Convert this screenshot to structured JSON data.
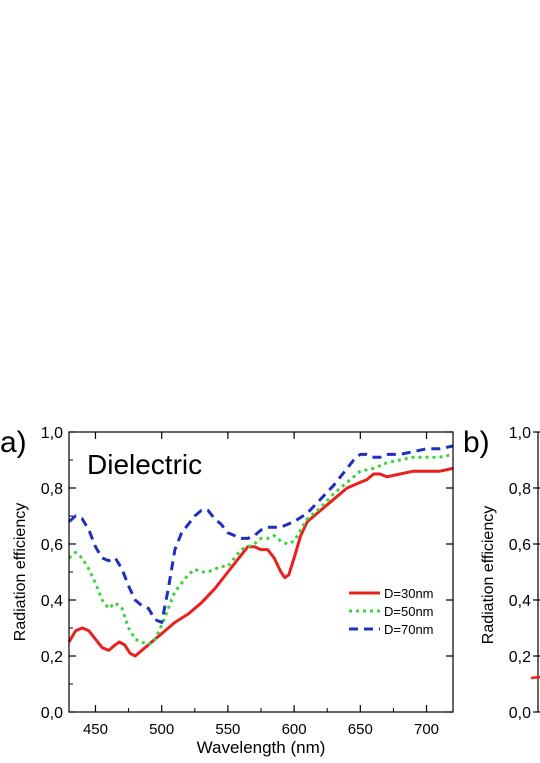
{
  "chart_data": [
    {
      "type": "line",
      "panel_label": "a)",
      "title": "Dielectric",
      "xlabel": "Wavelength (nm)",
      "ylabel": "Radiation efficiency",
      "xlim": [
        430,
        720
      ],
      "ylim": [
        0.0,
        1.0
      ],
      "x_ticks": [
        450,
        500,
        550,
        600,
        650,
        700
      ],
      "x_tick_labels": [
        "450",
        "500",
        "550",
        "600",
        "650",
        "700"
      ],
      "y_ticks": [
        0.0,
        0.2,
        0.4,
        0.6,
        0.8,
        1.0
      ],
      "y_tick_labels": [
        "0,0",
        "0,2",
        "0,4",
        "0,6",
        "0,8",
        "1,0"
      ],
      "grid": false,
      "legend_position": "center-right",
      "series": [
        {
          "name": "D=30nm",
          "color": "#e8201e",
          "dash": "solid",
          "points": [
            [
              430,
              0.25
            ],
            [
              435,
              0.29
            ],
            [
              440,
              0.3
            ],
            [
              445,
              0.29
            ],
            [
              450,
              0.26
            ],
            [
              455,
              0.23
            ],
            [
              460,
              0.22
            ],
            [
              465,
              0.24
            ],
            [
              468,
              0.25
            ],
            [
              472,
              0.24
            ],
            [
              476,
              0.21
            ],
            [
              480,
              0.2
            ],
            [
              485,
              0.22
            ],
            [
              490,
              0.24
            ],
            [
              495,
              0.26
            ],
            [
              500,
              0.28
            ],
            [
              510,
              0.32
            ],
            [
              520,
              0.35
            ],
            [
              530,
              0.39
            ],
            [
              540,
              0.44
            ],
            [
              550,
              0.5
            ],
            [
              560,
              0.56
            ],
            [
              565,
              0.59
            ],
            [
              570,
              0.59
            ],
            [
              575,
              0.58
            ],
            [
              580,
              0.58
            ],
            [
              585,
              0.55
            ],
            [
              590,
              0.5
            ],
            [
              593,
              0.48
            ],
            [
              596,
              0.49
            ],
            [
              600,
              0.55
            ],
            [
              605,
              0.63
            ],
            [
              610,
              0.68
            ],
            [
              620,
              0.72
            ],
            [
              630,
              0.76
            ],
            [
              640,
              0.8
            ],
            [
              650,
              0.82
            ],
            [
              655,
              0.83
            ],
            [
              660,
              0.85
            ],
            [
              665,
              0.85
            ],
            [
              670,
              0.84
            ],
            [
              680,
              0.85
            ],
            [
              690,
              0.86
            ],
            [
              700,
              0.86
            ],
            [
              710,
              0.86
            ],
            [
              720,
              0.87
            ]
          ]
        },
        {
          "name": "D=50nm",
          "color": "#39d43a",
          "dash": "dot",
          "points": [
            [
              430,
              0.55
            ],
            [
              435,
              0.57
            ],
            [
              440,
              0.55
            ],
            [
              445,
              0.51
            ],
            [
              450,
              0.46
            ],
            [
              455,
              0.4
            ],
            [
              460,
              0.37
            ],
            [
              465,
              0.39
            ],
            [
              470,
              0.37
            ],
            [
              475,
              0.3
            ],
            [
              480,
              0.26
            ],
            [
              485,
              0.25
            ],
            [
              490,
              0.24
            ],
            [
              495,
              0.26
            ],
            [
              500,
              0.31
            ],
            [
              505,
              0.37
            ],
            [
              510,
              0.43
            ],
            [
              515,
              0.46
            ],
            [
              520,
              0.49
            ],
            [
              525,
              0.51
            ],
            [
              530,
              0.5
            ],
            [
              535,
              0.5
            ],
            [
              540,
              0.51
            ],
            [
              545,
              0.52
            ],
            [
              550,
              0.52
            ],
            [
              555,
              0.55
            ],
            [
              560,
              0.58
            ],
            [
              570,
              0.6
            ],
            [
              575,
              0.62
            ],
            [
              580,
              0.62
            ],
            [
              585,
              0.63
            ],
            [
              590,
              0.61
            ],
            [
              595,
              0.6
            ],
            [
              600,
              0.61
            ],
            [
              605,
              0.65
            ],
            [
              610,
              0.69
            ],
            [
              620,
              0.73
            ],
            [
              630,
              0.78
            ],
            [
              640,
              0.82
            ],
            [
              650,
              0.86
            ],
            [
              660,
              0.87
            ],
            [
              670,
              0.89
            ],
            [
              680,
              0.9
            ],
            [
              690,
              0.91
            ],
            [
              700,
              0.91
            ],
            [
              710,
              0.91
            ],
            [
              720,
              0.92
            ]
          ]
        },
        {
          "name": "D=70nm",
          "color": "#1f2fc0",
          "dash": "dash",
          "points": [
            [
              430,
              0.68
            ],
            [
              435,
              0.7
            ],
            [
              440,
              0.69
            ],
            [
              445,
              0.65
            ],
            [
              450,
              0.59
            ],
            [
              455,
              0.55
            ],
            [
              460,
              0.54
            ],
            [
              465,
              0.55
            ],
            [
              470,
              0.51
            ],
            [
              475,
              0.45
            ],
            [
              480,
              0.4
            ],
            [
              485,
              0.38
            ],
            [
              490,
              0.37
            ],
            [
              495,
              0.33
            ],
            [
              500,
              0.32
            ],
            [
              505,
              0.44
            ],
            [
              510,
              0.58
            ],
            [
              515,
              0.64
            ],
            [
              520,
              0.67
            ],
            [
              525,
              0.7
            ],
            [
              530,
              0.72
            ],
            [
              535,
              0.72
            ],
            [
              540,
              0.69
            ],
            [
              545,
              0.67
            ],
            [
              550,
              0.64
            ],
            [
              560,
              0.62
            ],
            [
              565,
              0.62
            ],
            [
              570,
              0.63
            ],
            [
              575,
              0.65
            ],
            [
              580,
              0.66
            ],
            [
              590,
              0.66
            ],
            [
              600,
              0.68
            ],
            [
              610,
              0.71
            ],
            [
              620,
              0.76
            ],
            [
              630,
              0.81
            ],
            [
              640,
              0.87
            ],
            [
              645,
              0.9
            ],
            [
              650,
              0.92
            ],
            [
              655,
              0.92
            ],
            [
              660,
              0.91
            ],
            [
              665,
              0.91
            ],
            [
              670,
              0.92
            ],
            [
              680,
              0.92
            ],
            [
              690,
              0.93
            ],
            [
              700,
              0.94
            ],
            [
              710,
              0.94
            ],
            [
              720,
              0.95
            ]
          ]
        }
      ]
    },
    {
      "type": "line",
      "panel_label": "b)",
      "ylabel": "Radiation efficiency",
      "ylim": [
        0.0,
        1.0
      ],
      "y_ticks": [
        0.0,
        0.2,
        0.4,
        0.6,
        0.8,
        1.0
      ],
      "y_tick_labels": [
        "0,0",
        "0,2",
        "0,4",
        "0,6",
        "0,8",
        "1,0"
      ],
      "grid": false,
      "series": []
    }
  ]
}
